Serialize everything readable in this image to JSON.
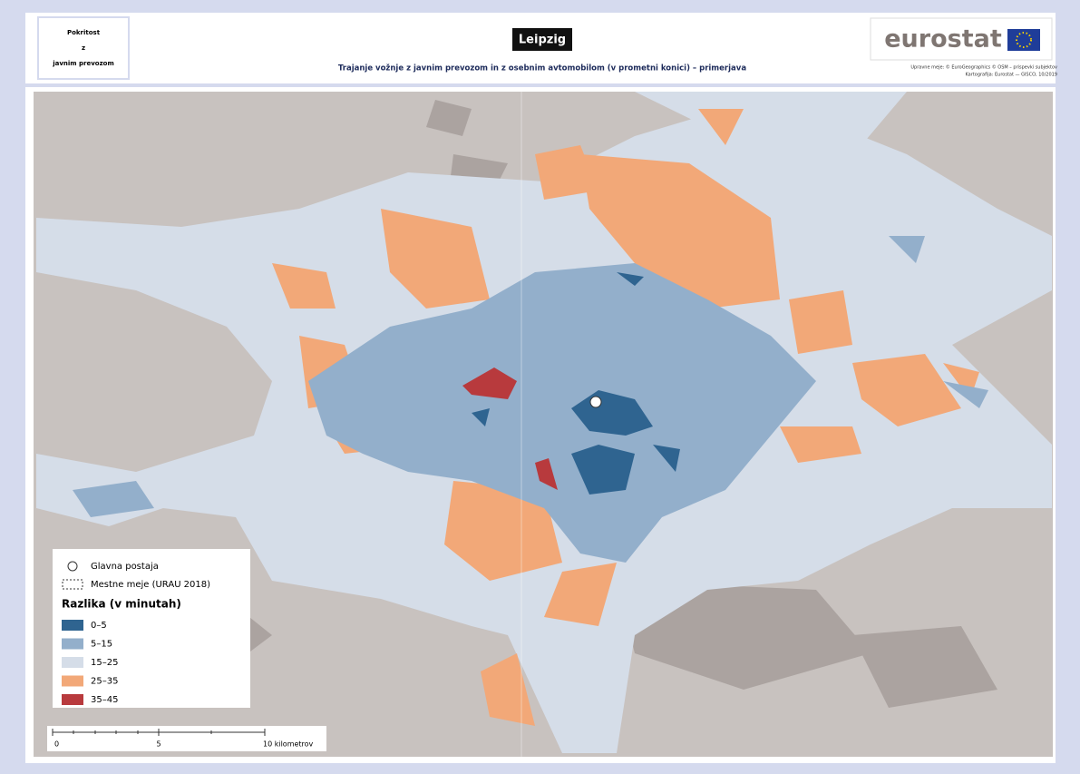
{
  "header": {
    "coverage_box": [
      "Pokritost",
      "z",
      "javnim prevozom"
    ],
    "title": "Leipzig",
    "subtitle": "Trajanje vožnje z javnim prevozom in z osebnim avtomobilom (v prometni konici) – primerjava",
    "logo": "eurostat",
    "credits": [
      "Upravne meje: © EuroGeographics © OSM – prispevki subjektov",
      "Kartografija: Eurostat — GISCO, 10/2019"
    ]
  },
  "legend": {
    "station": "Glavna postaja",
    "boundary": "Mestne meje (URAU 2018)",
    "title": "Razlika (v minutah)",
    "classes": [
      {
        "label": "0–5",
        "color": "#2f6490"
      },
      {
        "label": "5–15",
        "color": "#93afcb"
      },
      {
        "label": "15–25",
        "color": "#d5dde8"
      },
      {
        "label": "25–35",
        "color": "#f2a878"
      },
      {
        "label": "35–45",
        "color": "#b83a3d"
      }
    ]
  },
  "scale_bar": {
    "labels": [
      "0",
      "5",
      "10 kilometrov"
    ]
  }
}
